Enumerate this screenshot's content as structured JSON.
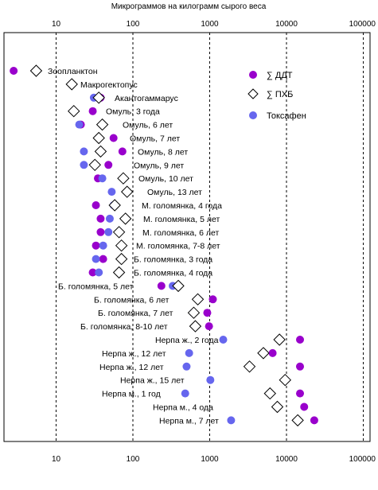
{
  "chart_data": {
    "type": "scatter",
    "title": "Микрограммов на килограмм сырого веса",
    "x_scale": "log",
    "xlim": [
      1,
      100000
    ],
    "x_ticks": [
      "1",
      "10",
      "100",
      "1000",
      "10000",
      "100000"
    ],
    "grid": "vertical dashed",
    "legend_position": "top-right",
    "colors": {
      "ddt": "#9900CC",
      "pcb": "#FFFFFF",
      "toxaphene": "#6666EE"
    },
    "series_meta": [
      {
        "key": "ddt",
        "name": "∑ ДДТ",
        "marker": "circle"
      },
      {
        "key": "pcb",
        "name": "∑ ПХБ",
        "marker": "diamond"
      },
      {
        "key": "toxaphene",
        "name": "Токсафен",
        "marker": "circle"
      }
    ],
    "rows": [
      {
        "label": "Зоопланктон",
        "ddt": 2.8,
        "pcb": 5.5,
        "toxaphene": null
      },
      {
        "label": "Макрогектопус",
        "ddt": null,
        "pcb": 16,
        "toxaphene": null
      },
      {
        "label": "Акантогаммарус",
        "ddt": 38,
        "pcb": 36,
        "toxaphene": 31
      },
      {
        "label": "Омуль, 3 года",
        "ddt": 30,
        "pcb": 17,
        "toxaphene": null
      },
      {
        "label": "Омуль, 6 лет",
        "ddt": 21,
        "pcb": 40,
        "toxaphene": 20
      },
      {
        "label": "Омуль, 7 лет",
        "ddt": 56,
        "pcb": 36,
        "toxaphene": null
      },
      {
        "label": "Омуль, 8 лет",
        "ddt": 73,
        "pcb": 38,
        "toxaphene": 23
      },
      {
        "label": "Омуль, 9 лет",
        "ddt": 48,
        "pcb": 32,
        "toxaphene": 23
      },
      {
        "label": "Омуль, 10 лет",
        "ddt": 35,
        "pcb": 75,
        "toxaphene": 40
      },
      {
        "label": "Омуль, 13 лет",
        "ddt": null,
        "pcb": 84,
        "toxaphene": 53
      },
      {
        "label": "М. голомянка, 4 года",
        "ddt": 33,
        "pcb": 58,
        "toxaphene": 56
      },
      {
        "label": "М. голомянка, 5 лет",
        "ddt": 38,
        "pcb": 80,
        "toxaphene": 50
      },
      {
        "label": "М. голомянка, 6 лет",
        "ddt": 38,
        "pcb": 66,
        "toxaphene": 48
      },
      {
        "label": "М. голомянка, 7-8 лет",
        "ddt": 33,
        "pcb": 71,
        "toxaphene": 41
      },
      {
        "label": "Б. голомянка, 3 года",
        "ddt": 41,
        "pcb": 71,
        "toxaphene": 33
      },
      {
        "label": "Б. голомянка, 4 года",
        "ddt": 30,
        "pcb": 66,
        "toxaphene": 36
      },
      {
        "label": "Б. голомянка, 5 лет",
        "ddt": 235,
        "pcb": 390,
        "toxaphene": 330
      },
      {
        "label": "Б. голомянка, 6 лет",
        "ddt": 1100,
        "pcb": 700,
        "toxaphene": 710
      },
      {
        "label": "Б. голомянка, 7 лет",
        "ddt": 930,
        "pcb": 620,
        "toxaphene": 610
      },
      {
        "label": "Б. голомянка, 8-10 лет",
        "ddt": 980,
        "pcb": 650,
        "toxaphene": 650
      },
      {
        "label": "Нерпа ж., 2 года",
        "ddt": 15000,
        "pcb": 8100,
        "toxaphene": 1500
      },
      {
        "label": "Нерпа ж., 12 лет",
        "ddt": 6600,
        "pcb": 5000,
        "toxaphene": 540
      },
      {
        "label": "Нерпа ж., 12 лет",
        "ddt": 15000,
        "pcb": 3300,
        "toxaphene": 500
      },
      {
        "label": "Нерпа ж., 15 лет",
        "ddt": 9700,
        "pcb": 9600,
        "toxaphene": 1020
      },
      {
        "label": "Нерпа м., 1 год",
        "ddt": 15000,
        "pcb": 6100,
        "toxaphene": 480
      },
      {
        "label": "Нерпа м., 4 ода",
        "ddt": 17000,
        "pcb": 7600,
        "toxaphene": null
      },
      {
        "label": "Нерпа м., 7 лет",
        "ddt": 23000,
        "pcb": 14000,
        "toxaphene": 1900
      }
    ]
  }
}
